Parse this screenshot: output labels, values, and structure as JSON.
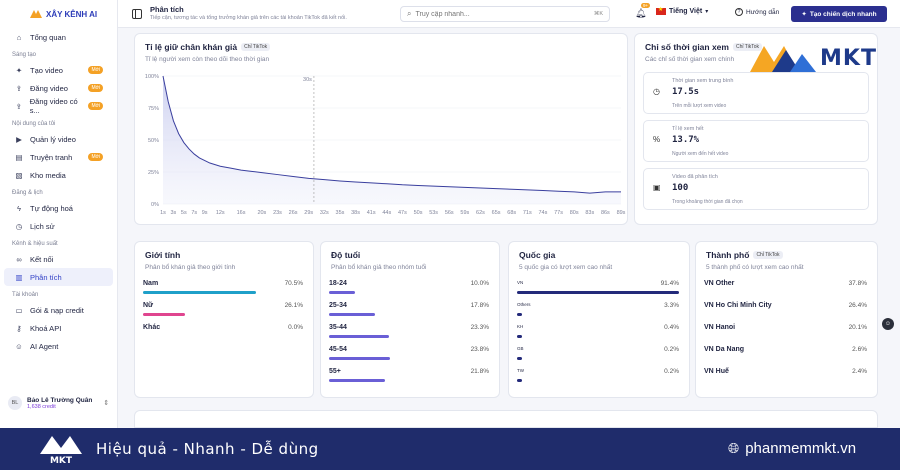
{
  "brand": {
    "name": "XÂY KÊNH AI"
  },
  "sidebar": {
    "sections": [
      "Sáng tạo",
      "Nội dung của tôi",
      "Đăng & lịch",
      "Kênh & hiệu suất",
      "Tài khoản"
    ],
    "items": [
      {
        "label": "Tổng quan",
        "icon": "home-icon"
      },
      {
        "label": "Tạo video",
        "icon": "sparkle-icon",
        "badge": "Mới"
      },
      {
        "label": "Đăng video",
        "icon": "upload-icon",
        "badge": "Mới"
      },
      {
        "label": "Đăng video có s...",
        "icon": "upload-icon",
        "badge": "Mới"
      },
      {
        "label": "Quản lý video",
        "icon": "video-icon"
      },
      {
        "label": "Truyện tranh",
        "icon": "book-icon",
        "badge": "Mới"
      },
      {
        "label": "Kho media",
        "icon": "image-icon"
      },
      {
        "label": "Tự động hoá",
        "icon": "bolt-icon"
      },
      {
        "label": "Lịch sử",
        "icon": "clock-icon"
      },
      {
        "label": "Kết nối",
        "icon": "link-icon"
      },
      {
        "label": "Phân tích",
        "icon": "chart-icon"
      },
      {
        "label": "Gói & nạp credit",
        "icon": "card-icon"
      },
      {
        "label": "Khoá API",
        "icon": "key-icon"
      },
      {
        "label": "AI Agent",
        "icon": "bot-icon"
      }
    ],
    "user": {
      "initials": "BL",
      "name": "Bảo Lê Trường Quân",
      "credits": "1,638 credit"
    }
  },
  "header": {
    "title": "Phân tích",
    "subtitle": "Tiếp cận, tương tác và tổng trưởng khán giả trên các tài khoản TikTok đã kết nối.",
    "search_placeholder": "Truy cập nhanh...",
    "search_shortcut": "⌘K",
    "notif_count": "9+",
    "language": "Tiếng Việt",
    "guide": "Hướng dẫn",
    "cta": "Tạo chiến dịch nhanh"
  },
  "retention": {
    "title": "Tỉ lệ giữ chân khán giả",
    "chip": "Chỉ TikTok",
    "subtitle": "Tỉ lệ người xem còn theo dõi theo thời gian",
    "marker": "30s"
  },
  "chart_data": {
    "type": "area",
    "xlabel": "",
    "ylabel": "",
    "ylim": [
      0,
      100
    ],
    "y_ticks": [
      "0%",
      "25%",
      "50%",
      "75%",
      "100%"
    ],
    "x_ticks": [
      "1s",
      "3s",
      "5s",
      "7s",
      "9s",
      "12s",
      "16s",
      "20s",
      "23s",
      "26s",
      "29s",
      "32s",
      "35s",
      "38s",
      "41s",
      "44s",
      "47s",
      "50s",
      "53s",
      "56s",
      "59s",
      "62s",
      "65s",
      "68s",
      "71s",
      "74s",
      "77s",
      "80s",
      "83s",
      "86s",
      "89s"
    ],
    "x": [
      1,
      2,
      3,
      4,
      5,
      6,
      7,
      8,
      10,
      12,
      14,
      16,
      18,
      20,
      23,
      26,
      29,
      32,
      35,
      38,
      41,
      44,
      47,
      50,
      53,
      56,
      59,
      62,
      65,
      68,
      71,
      74,
      77,
      80,
      83,
      86,
      89
    ],
    "series": [
      {
        "values": [
          100,
          80,
          65,
          55,
          48,
          43,
          39,
          36,
          32,
          29.5,
          28,
          26.5,
          25.5,
          24.5,
          23,
          21.5,
          20,
          19,
          18,
          17.2,
          16.5,
          15.8,
          15,
          14.5,
          14,
          13.5,
          13,
          12.5,
          12,
          11.5,
          11,
          10.5,
          10,
          9.5,
          8.5,
          9.5,
          9.5
        ]
      }
    ]
  },
  "metrics": {
    "title": "Chỉ số thời gian xem",
    "chip": "Chỉ TikTok",
    "subtitle": "Các chỉ số thời gian xem chính",
    "items": [
      {
        "label": "Thời gian xem trung bình",
        "value": "17.5s",
        "desc": "Trên mỗi lượt xem video",
        "icon": "clock-icon"
      },
      {
        "label": "Tỉ lệ xem hết",
        "value": "13.7%",
        "desc": "Người xem đến hết video",
        "icon": "percent-icon"
      },
      {
        "label": "Video đã phân tích",
        "value": "100",
        "desc": "Trong khoảng thời gian đã chọn",
        "icon": "film-icon"
      }
    ]
  },
  "gender": {
    "title": "Giới tính",
    "subtitle": "Phân bổ khán giả theo giới tính",
    "rows": [
      {
        "label": "Nam",
        "pct": "70.5%",
        "value": 70.5,
        "color": "#1fa0c9"
      },
      {
        "label": "Nữ",
        "pct": "26.1%",
        "value": 26.1,
        "color": "#e0458f"
      },
      {
        "label": "Khác",
        "pct": "0.0%",
        "value": 0,
        "color": "#9aa0b5"
      }
    ]
  },
  "age": {
    "title": "Độ tuổi",
    "subtitle": "Phân bổ khán giả theo nhóm tuổi",
    "rows": [
      {
        "label": "18-24",
        "pct": "10.0%",
        "value": 10.0,
        "color": "#6a5fd6"
      },
      {
        "label": "25-34",
        "pct": "17.8%",
        "value": 17.8,
        "color": "#6a5fd6"
      },
      {
        "label": "35-44",
        "pct": "23.3%",
        "value": 23.3,
        "color": "#6a5fd6"
      },
      {
        "label": "45-54",
        "pct": "23.8%",
        "value": 23.8,
        "color": "#6a5fd6"
      },
      {
        "label": "55+",
        "pct": "21.8%",
        "value": 21.8,
        "color": "#6a5fd6"
      }
    ]
  },
  "country": {
    "title": "Quốc gia",
    "subtitle": "5 quốc gia có lượt xem cao nhất",
    "rows": [
      {
        "label": "VN",
        "pct": "91.4%",
        "value": 91.4,
        "color": "#232a7a"
      },
      {
        "label": "Others",
        "pct": "3.3%",
        "value": 3.3,
        "color": "#232a7a"
      },
      {
        "label": "KH",
        "pct": "0.4%",
        "value": 0.4,
        "color": "#232a7a"
      },
      {
        "label": "GB",
        "pct": "0.2%",
        "value": 0.2,
        "color": "#232a7a"
      },
      {
        "label": "TW",
        "pct": "0.2%",
        "value": 0.2,
        "color": "#232a7a"
      }
    ]
  },
  "city": {
    "title": "Thành phố",
    "chip": "Chỉ TikTok",
    "subtitle": "5 thành phố có lượt xem cao nhất",
    "rows": [
      {
        "label": "VN Other",
        "pct": "37.8%",
        "value": 37.8,
        "color": "#232a7a"
      },
      {
        "label": "VN Ho Chi Minh City",
        "pct": "26.4%",
        "value": 26.4,
        "color": "#232a7a"
      },
      {
        "label": "VN Hanoi",
        "pct": "20.1%",
        "value": 20.1,
        "color": "#232a7a"
      },
      {
        "label": "VN Da Nang",
        "pct": "2.6%",
        "value": 2.6,
        "color": "#232a7a"
      },
      {
        "label": "VN Huế",
        "pct": "2.4%",
        "value": 2.4,
        "color": "#232a7a"
      }
    ]
  },
  "watermark": {
    "text": "MKT"
  },
  "footer": {
    "slogan": "Hiệu quả - Nhanh - Dễ dùng",
    "site": "phanmemmkt.vn"
  },
  "colors": {
    "accent": "#2b2f8f",
    "active": "#3342c7",
    "badge": "#f4a125",
    "footer_bg": "#1f2c6b"
  }
}
